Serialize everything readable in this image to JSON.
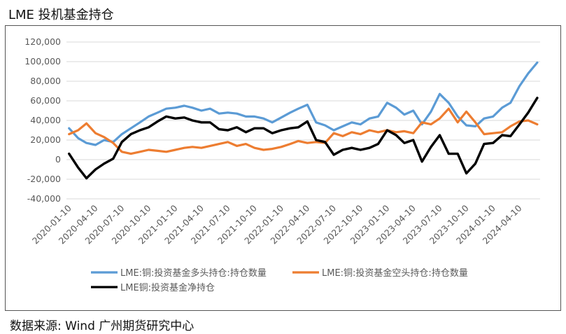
{
  "page": {
    "title": "LME 投机基金持仓",
    "source": "数据来源:  Wind  广州期货研究中心"
  },
  "chart_data": {
    "type": "line",
    "title": "LME 投机基金持仓",
    "xlabel": "",
    "ylabel": "",
    "ylim": [
      -40000,
      120000
    ],
    "yticks": [
      120000,
      100000,
      80000,
      60000,
      40000,
      20000,
      0,
      -20000,
      -40000
    ],
    "ytick_labels": [
      "120,000",
      "100,000",
      "80,000",
      "60,000",
      "40,000",
      "20,000",
      "0",
      "-20,000",
      "-40,000"
    ],
    "xticks": [
      "2020-01-10",
      "2020-04-10",
      "2020-07-10",
      "2020-10-10",
      "2021-01-10",
      "2021-04-10",
      "2021-07-10",
      "2021-10-10",
      "2022-01-10",
      "2022-04-10",
      "2022-07-10",
      "2022-10-10",
      "2023-01-10",
      "2023-04-10",
      "2023-07-10",
      "2023-10-10",
      "2024-01-10",
      "2024-04-10"
    ],
    "grid": "horizontal",
    "legend_position": "bottom",
    "series": [
      {
        "name": "LME:铜:投资基金多头持仓:持仓数量",
        "color": "#5B9BD5",
        "points": [
          [
            "2020-01-10",
            32000
          ],
          [
            "2020-02-10",
            22000
          ],
          [
            "2020-03-10",
            17000
          ],
          [
            "2020-04-10",
            15000
          ],
          [
            "2020-05-10",
            20000
          ],
          [
            "2020-06-10",
            18000
          ],
          [
            "2020-07-10",
            26000
          ],
          [
            "2020-08-10",
            32000
          ],
          [
            "2020-09-10",
            38000
          ],
          [
            "2020-10-10",
            44000
          ],
          [
            "2020-11-10",
            48000
          ],
          [
            "2020-12-10",
            52000
          ],
          [
            "2021-01-10",
            53000
          ],
          [
            "2021-02-10",
            55000
          ],
          [
            "2021-03-10",
            53000
          ],
          [
            "2021-04-10",
            50000
          ],
          [
            "2021-05-10",
            52000
          ],
          [
            "2021-06-10",
            47000
          ],
          [
            "2021-07-10",
            48000
          ],
          [
            "2021-08-10",
            47000
          ],
          [
            "2021-09-10",
            44000
          ],
          [
            "2021-10-10",
            44000
          ],
          [
            "2021-11-10",
            42000
          ],
          [
            "2021-12-10",
            38000
          ],
          [
            "2022-01-10",
            43000
          ],
          [
            "2022-02-10",
            48000
          ],
          [
            "2022-03-10",
            52000
          ],
          [
            "2022-04-10",
            56000
          ],
          [
            "2022-05-10",
            38000
          ],
          [
            "2022-06-10",
            35000
          ],
          [
            "2022-07-10",
            30000
          ],
          [
            "2022-08-10",
            34000
          ],
          [
            "2022-09-10",
            38000
          ],
          [
            "2022-10-10",
            36000
          ],
          [
            "2022-11-10",
            42000
          ],
          [
            "2022-12-10",
            44000
          ],
          [
            "2023-01-10",
            58000
          ],
          [
            "2023-02-10",
            53000
          ],
          [
            "2023-03-10",
            46000
          ],
          [
            "2023-04-10",
            50000
          ],
          [
            "2023-05-10",
            36000
          ],
          [
            "2023-06-10",
            49000
          ],
          [
            "2023-07-10",
            67000
          ],
          [
            "2023-08-10",
            58000
          ],
          [
            "2023-09-10",
            44000
          ],
          [
            "2023-10-10",
            35000
          ],
          [
            "2023-11-10",
            34000
          ],
          [
            "2023-12-10",
            42000
          ],
          [
            "2024-01-10",
            44000
          ],
          [
            "2024-02-10",
            53000
          ],
          [
            "2024-03-10",
            58000
          ],
          [
            "2024-04-10",
            75000
          ],
          [
            "2024-05-10",
            88000
          ],
          [
            "2024-06-10",
            99000
          ]
        ]
      },
      {
        "name": "LME:铜:投资基金空头持仓:持仓数量",
        "color": "#ED7D31",
        "points": [
          [
            "2020-01-10",
            26000
          ],
          [
            "2020-02-10",
            30000
          ],
          [
            "2020-03-10",
            37000
          ],
          [
            "2020-04-10",
            27000
          ],
          [
            "2020-05-10",
            23000
          ],
          [
            "2020-06-10",
            17000
          ],
          [
            "2020-07-10",
            8000
          ],
          [
            "2020-08-10",
            6000
          ],
          [
            "2020-09-10",
            8000
          ],
          [
            "2020-10-10",
            10000
          ],
          [
            "2020-11-10",
            9000
          ],
          [
            "2020-12-10",
            8000
          ],
          [
            "2021-01-10",
            10000
          ],
          [
            "2021-02-10",
            12000
          ],
          [
            "2021-03-10",
            13000
          ],
          [
            "2021-04-10",
            12000
          ],
          [
            "2021-05-10",
            14000
          ],
          [
            "2021-06-10",
            16000
          ],
          [
            "2021-07-10",
            18000
          ],
          [
            "2021-08-10",
            14000
          ],
          [
            "2021-09-10",
            16000
          ],
          [
            "2021-10-10",
            12000
          ],
          [
            "2021-11-10",
            10000
          ],
          [
            "2021-12-10",
            11000
          ],
          [
            "2022-01-10",
            13000
          ],
          [
            "2022-02-10",
            16000
          ],
          [
            "2022-03-10",
            19000
          ],
          [
            "2022-04-10",
            17000
          ],
          [
            "2022-05-10",
            18000
          ],
          [
            "2022-06-10",
            17000
          ],
          [
            "2022-07-10",
            27000
          ],
          [
            "2022-08-10",
            24000
          ],
          [
            "2022-09-10",
            28000
          ],
          [
            "2022-10-10",
            26000
          ],
          [
            "2022-11-10",
            30000
          ],
          [
            "2022-12-10",
            28000
          ],
          [
            "2023-01-10",
            30000
          ],
          [
            "2023-02-10",
            28000
          ],
          [
            "2023-03-10",
            29000
          ],
          [
            "2023-04-10",
            27000
          ],
          [
            "2023-05-10",
            38000
          ],
          [
            "2023-06-10",
            36000
          ],
          [
            "2023-07-10",
            42000
          ],
          [
            "2023-08-10",
            52000
          ],
          [
            "2023-09-10",
            38000
          ],
          [
            "2023-10-10",
            49000
          ],
          [
            "2023-11-10",
            38000
          ],
          [
            "2023-12-10",
            26000
          ],
          [
            "2024-01-10",
            27000
          ],
          [
            "2024-02-10",
            28000
          ],
          [
            "2024-03-10",
            34000
          ],
          [
            "2024-04-10",
            39000
          ],
          [
            "2024-05-10",
            40000
          ],
          [
            "2024-06-10",
            36000
          ]
        ]
      },
      {
        "name": "LME铜:投资基金净持仓",
        "color": "#000000",
        "points": [
          [
            "2020-01-10",
            6000
          ],
          [
            "2020-02-10",
            -8000
          ],
          [
            "2020-03-10",
            -19000
          ],
          [
            "2020-04-10",
            -10000
          ],
          [
            "2020-05-10",
            -4000
          ],
          [
            "2020-06-10",
            1000
          ],
          [
            "2020-07-10",
            18000
          ],
          [
            "2020-08-10",
            26000
          ],
          [
            "2020-09-10",
            30000
          ],
          [
            "2020-10-10",
            33000
          ],
          [
            "2020-11-10",
            39000
          ],
          [
            "2020-12-10",
            44000
          ],
          [
            "2021-01-10",
            42000
          ],
          [
            "2021-02-10",
            43000
          ],
          [
            "2021-03-10",
            40000
          ],
          [
            "2021-04-10",
            38000
          ],
          [
            "2021-05-10",
            38000
          ],
          [
            "2021-06-10",
            31000
          ],
          [
            "2021-07-10",
            30000
          ],
          [
            "2021-08-10",
            33000
          ],
          [
            "2021-09-10",
            28000
          ],
          [
            "2021-10-10",
            32000
          ],
          [
            "2021-11-10",
            32000
          ],
          [
            "2021-12-10",
            27000
          ],
          [
            "2022-01-10",
            30000
          ],
          [
            "2022-02-10",
            32000
          ],
          [
            "2022-03-10",
            33000
          ],
          [
            "2022-04-10",
            39000
          ],
          [
            "2022-05-10",
            20000
          ],
          [
            "2022-06-10",
            18000
          ],
          [
            "2022-07-10",
            5000
          ],
          [
            "2022-08-10",
            10000
          ],
          [
            "2022-09-10",
            12000
          ],
          [
            "2022-10-10",
            10000
          ],
          [
            "2022-11-10",
            12000
          ],
          [
            "2022-12-10",
            16000
          ],
          [
            "2023-01-10",
            30000
          ],
          [
            "2023-02-10",
            25000
          ],
          [
            "2023-03-10",
            17000
          ],
          [
            "2023-04-10",
            20000
          ],
          [
            "2023-05-10",
            -2000
          ],
          [
            "2023-06-10",
            13000
          ],
          [
            "2023-07-10",
            25000
          ],
          [
            "2023-08-10",
            6000
          ],
          [
            "2023-09-10",
            6000
          ],
          [
            "2023-10-10",
            -14000
          ],
          [
            "2023-11-10",
            -4000
          ],
          [
            "2023-12-10",
            16000
          ],
          [
            "2024-01-10",
            17000
          ],
          [
            "2024-02-10",
            25000
          ],
          [
            "2024-03-10",
            24000
          ],
          [
            "2024-04-10",
            36000
          ],
          [
            "2024-05-10",
            48000
          ],
          [
            "2024-06-10",
            63000
          ]
        ]
      }
    ]
  }
}
